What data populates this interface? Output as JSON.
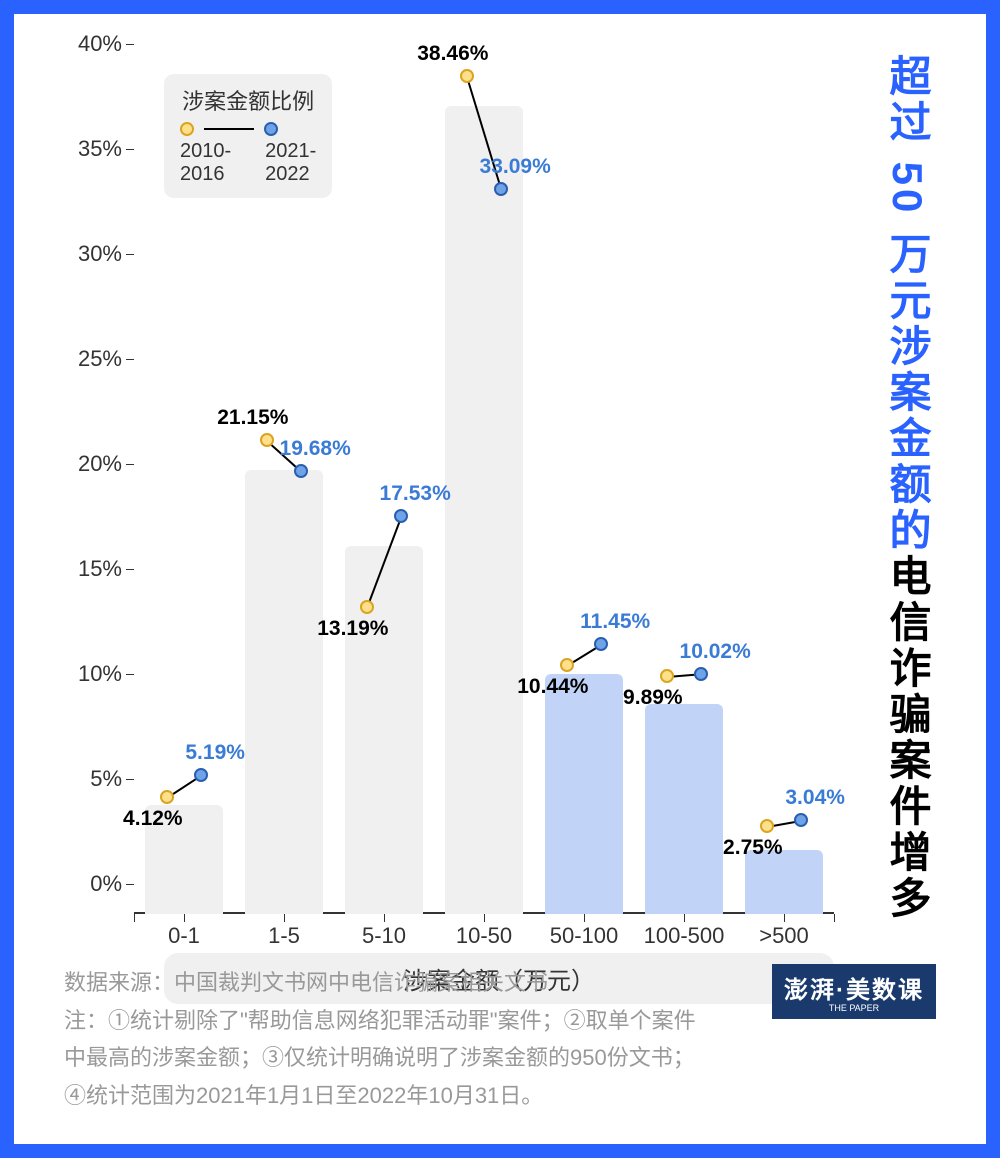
{
  "frame_color": "#2962ff",
  "headline": {
    "line1_blue": "超过",
    "line1_num_blue": " 50 ",
    "line1_rest_blue": "万元涉案金额的",
    "line2_black": "电信诈骗案件增多"
  },
  "legend": {
    "title": "涉案金额比例",
    "series_a_label": "2010-\n2016",
    "series_b_label": "2021-\n2022"
  },
  "chart": {
    "type": "bar+slope",
    "x_title": "涉案金额（万元）",
    "categories": [
      "0-1",
      "1-5",
      "5-10",
      "10-50",
      "50-100",
      "100-500",
      ">500"
    ],
    "series_a": {
      "name": "2010-2016",
      "values": [
        4.12,
        21.15,
        13.19,
        38.46,
        10.44,
        9.89,
        2.75
      ],
      "color": "#f5c542"
    },
    "series_b": {
      "name": "2021-2022",
      "values": [
        5.19,
        19.68,
        17.53,
        33.09,
        11.45,
        10.02,
        3.04
      ],
      "color": "#3a7bd5"
    },
    "bar_source": "max_of_a_b",
    "bar_color_low": "#f0f0f0",
    "bar_color_high": "#c1d4f7",
    "highlight_threshold_index": 4,
    "ylim": [
      0,
      40
    ],
    "ytick_step": 5,
    "y_suffix": "%",
    "label_color_a": "#000000",
    "label_color_b": "#3a7bd5",
    "marker_stroke_a": "#d9a420",
    "marker_stroke_b": "#2a5fb0",
    "marker_fill_a": "#ffe08a",
    "marker_fill_b": "#6fa3e8",
    "background_color": "#ffffff",
    "label_positions": [
      {
        "a": "below-left",
        "b": "above-right"
      },
      {
        "a": "above-left",
        "b": "above-right"
      },
      {
        "a": "below-left",
        "b": "above-right"
      },
      {
        "a": "above-left",
        "b": "above-right"
      },
      {
        "a": "below-left",
        "b": "above-right"
      },
      {
        "a": "below-left",
        "b": "above-right"
      },
      {
        "a": "below-left",
        "b": "above-right"
      }
    ]
  },
  "footer": {
    "source": "数据来源：中国裁判文书网中电信诈骗案相关文书",
    "note": "注：①统计剔除了\"帮助信息网络犯罪活动罪\"案件；②取单个案件中最高的涉案金额；③仅统计明确说明了涉案金额的950份文书；④统计范围为2021年1月1日至2022年10月31日。",
    "brand": "澎湃·美数课",
    "brand_sub": "THE PAPER"
  }
}
